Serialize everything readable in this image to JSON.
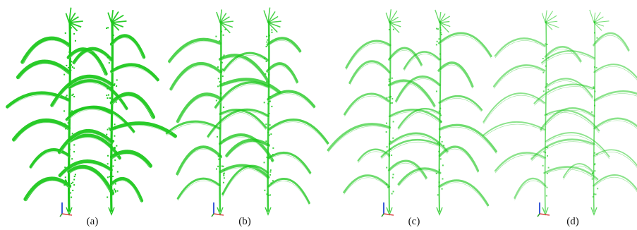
{
  "figure": {
    "panels": [
      {
        "label": "(a)",
        "density": 1.0
      },
      {
        "label": "(b)",
        "density": 0.72
      },
      {
        "label": "(c)",
        "density": 0.48
      },
      {
        "label": "(d)",
        "density": 0.28
      }
    ],
    "colors": {
      "background": "#ffffff",
      "plant_dense": "#1ec81e",
      "plant_light": "#8fdc8f",
      "axis_x": "#d94040",
      "axis_y": "#3a5ad8",
      "axis_z": "#2aa02a",
      "label_text": "#111111"
    },
    "icons": {
      "axis_gizmo": "xyz-axes-icon"
    }
  }
}
